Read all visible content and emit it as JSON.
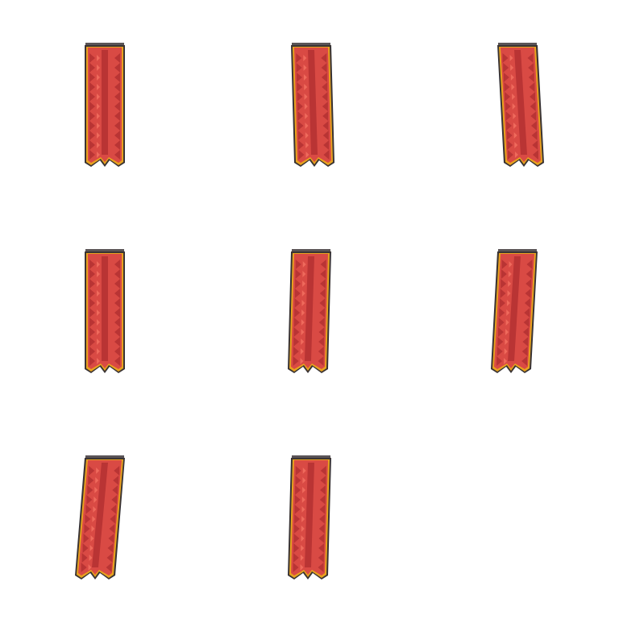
{
  "sheet": {
    "frame_count": 8,
    "columns": 3,
    "sprite": "hanging-red-banner",
    "frames": [
      {
        "id": 1,
        "sway": 0
      },
      {
        "id": 2,
        "sway": 1
      },
      {
        "id": 3,
        "sway": 2
      },
      {
        "id": 4,
        "sway": 0
      },
      {
        "id": 5,
        "sway": -1
      },
      {
        "id": 6,
        "sway": -2
      },
      {
        "id": 7,
        "sway": -3
      },
      {
        "id": 8,
        "sway": -1
      }
    ]
  },
  "colors": {
    "background": "#ffffff",
    "cloth": "#d94a44",
    "fold_shadow": "#b93434",
    "highlight": "#ef6a5c",
    "trim": "#e8a21e",
    "outline": "#3a3434",
    "rod": "#5a5456"
  }
}
